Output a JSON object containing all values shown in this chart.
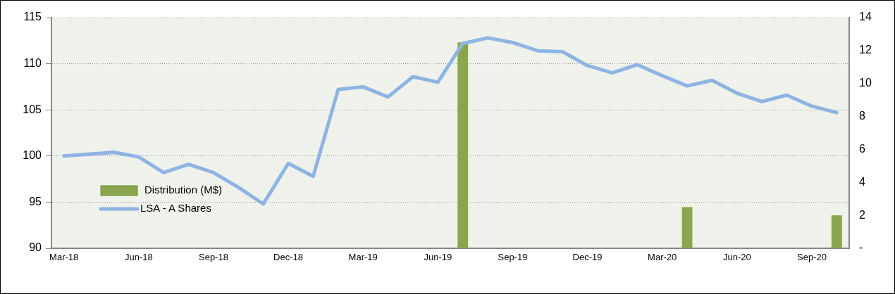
{
  "chart_data": {
    "type": "line",
    "categories": [
      "Mar-18",
      null,
      null,
      "Jun-18",
      null,
      null,
      "Sep-18",
      null,
      null,
      "Dec-18",
      null,
      null,
      "Mar-19",
      null,
      null,
      "Jun-19",
      null,
      null,
      "Sep-19",
      null,
      null,
      "Dec-19",
      null,
      null,
      "Mar-20",
      null,
      null,
      "Jun-20",
      null,
      null,
      "Sep-20",
      null
    ],
    "series": [
      {
        "name": "Distribution (M$)",
        "type": "bar",
        "axis": "y2",
        "color": "#8aa64c",
        "values": [
          null,
          null,
          null,
          null,
          null,
          null,
          null,
          null,
          null,
          null,
          null,
          null,
          null,
          null,
          null,
          null,
          12.5,
          null,
          null,
          null,
          null,
          null,
          null,
          null,
          null,
          2.5,
          null,
          null,
          null,
          null,
          null,
          2.0
        ]
      },
      {
        "name": "LSA - A Shares",
        "axis": "y",
        "color": "#8db4e2",
        "values": [
          100.0,
          100.2,
          100.4,
          99.9,
          98.2,
          99.1,
          98.2,
          96.6,
          94.8,
          99.2,
          97.8,
          107.2,
          107.5,
          106.4,
          108.6,
          108.0,
          112.2,
          112.8,
          112.3,
          111.4,
          111.3,
          109.8,
          109.0,
          109.9,
          108.7,
          107.6,
          108.2,
          106.8,
          105.9,
          106.6,
          105.4,
          104.7
        ]
      }
    ],
    "ylim": [
      90,
      115
    ],
    "yticks": [
      90,
      95,
      100,
      105,
      110,
      115
    ],
    "y2lim": [
      0,
      14
    ],
    "y2ticks": [
      {
        "value": 0,
        "label": "-"
      },
      2,
      4,
      6,
      8,
      10,
      12,
      14
    ],
    "grid": "y",
    "legend": "bottom left",
    "marker": "none",
    "line_style": "solid"
  }
}
